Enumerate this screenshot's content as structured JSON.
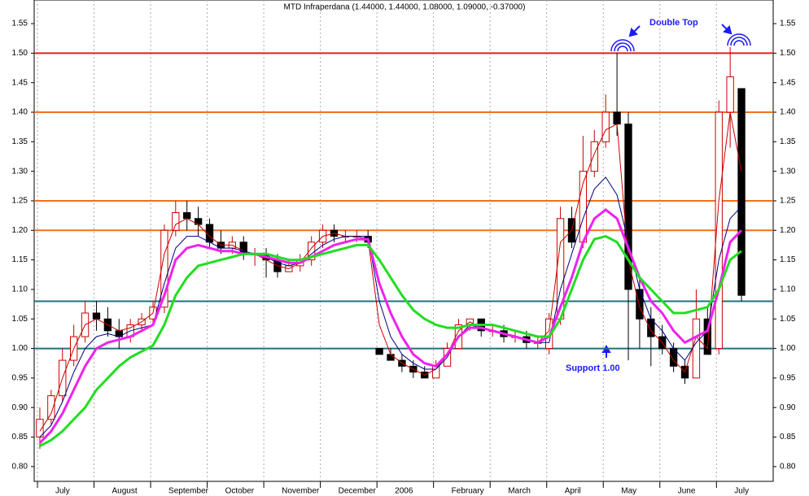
{
  "chart_data": {
    "type": "candlestick",
    "title": "MTD Infraperdana (1.44000, 1.44000, 1.08000, 1.09000, -0.37000)",
    "categories": [
      "July",
      null,
      null,
      null,
      null,
      "August",
      null,
      null,
      null,
      null,
      "September",
      null,
      null,
      null,
      null,
      "October",
      null,
      null,
      null,
      null,
      "November",
      null,
      null,
      null,
      null,
      "December",
      null,
      null,
      null,
      null,
      "2006",
      null,
      null,
      null,
      null,
      "February",
      null,
      null,
      null,
      null,
      "March",
      null,
      null,
      null,
      null,
      "April",
      null,
      null,
      null,
      null,
      "May",
      null,
      null,
      null,
      null,
      "June",
      null,
      null,
      null,
      null,
      "July",
      null,
      null
    ],
    "open": [
      0.85,
      0.88,
      0.92,
      0.98,
      1.02,
      1.06,
      1.05,
      1.03,
      1.02,
      1.04,
      1.05,
      1.07,
      1.2,
      1.23,
      1.22,
      1.21,
      1.18,
      1.17,
      1.18,
      1.16,
      1.16,
      1.15,
      1.13,
      1.14,
      1.15,
      1.18,
      1.2,
      1.19,
      1.19,
      1.19,
      1.0,
      0.99,
      0.98,
      0.97,
      0.96,
      0.95,
      0.97,
      1.0,
      1.04,
      1.05,
      1.03,
      1.03,
      1.02,
      1.02,
      1.01,
      1.0,
      1.05,
      1.22,
      1.18,
      1.3,
      1.35,
      1.4,
      1.38,
      1.1,
      1.05,
      1.02,
      1.0,
      0.97,
      0.95,
      1.05,
      1.0,
      1.4,
      1.44
    ],
    "high": [
      0.9,
      0.93,
      1.0,
      1.04,
      1.08,
      1.08,
      1.07,
      1.05,
      1.05,
      1.06,
      1.08,
      1.21,
      1.25,
      1.25,
      1.24,
      1.22,
      1.2,
      1.19,
      1.19,
      1.17,
      1.17,
      1.16,
      1.15,
      1.16,
      1.19,
      1.21,
      1.21,
      1.2,
      1.2,
      1.2,
      1.0,
      1.0,
      0.99,
      0.98,
      0.97,
      0.98,
      1.01,
      1.05,
      1.05,
      1.05,
      1.04,
      1.04,
      1.03,
      1.03,
      1.02,
      1.06,
      1.24,
      1.24,
      1.36,
      1.37,
      1.43,
      1.5,
      1.4,
      1.12,
      1.07,
      1.04,
      1.01,
      0.98,
      1.1,
      1.07,
      1.42,
      1.51,
      1.44
    ],
    "low": [
      0.83,
      0.87,
      0.91,
      0.97,
      1.01,
      1.03,
      1.02,
      1.0,
      1.01,
      1.03,
      1.04,
      1.06,
      1.19,
      1.2,
      1.19,
      1.17,
      1.16,
      1.16,
      1.15,
      1.14,
      1.12,
      1.12,
      1.13,
      1.13,
      1.14,
      1.17,
      1.18,
      1.18,
      1.18,
      1.17,
      0.99,
      0.98,
      0.96,
      0.95,
      0.95,
      0.95,
      0.97,
      1.0,
      1.03,
      1.02,
      1.02,
      1.01,
      1.01,
      1.0,
      1.0,
      0.99,
      1.04,
      1.17,
      1.17,
      1.29,
      1.34,
      1.36,
      0.98,
      1.0,
      0.97,
      0.99,
      0.96,
      0.94,
      0.95,
      0.99,
      0.99,
      1.34,
      1.08
    ],
    "close": [
      0.88,
      0.92,
      0.98,
      1.02,
      1.06,
      1.05,
      1.03,
      1.02,
      1.04,
      1.05,
      1.07,
      1.2,
      1.23,
      1.22,
      1.21,
      1.18,
      1.17,
      1.18,
      1.16,
      1.16,
      1.15,
      1.13,
      1.14,
      1.15,
      1.18,
      1.2,
      1.19,
      1.19,
      1.19,
      1.18,
      0.99,
      0.98,
      0.97,
      0.96,
      0.95,
      0.97,
      1.0,
      1.04,
      1.05,
      1.03,
      1.03,
      1.02,
      1.02,
      1.01,
      1.01,
      1.05,
      1.22,
      1.18,
      1.3,
      1.35,
      1.4,
      1.38,
      1.1,
      1.05,
      1.02,
      1.0,
      0.97,
      0.95,
      1.05,
      0.99,
      1.4,
      1.46,
      1.09
    ],
    "up_color": "#cc0000",
    "down_color": "#000000",
    "series": [
      {
        "color": "#cc0000",
        "width": 1,
        "values": [
          0.86,
          0.89,
          0.95,
          1.0,
          1.04,
          1.05,
          1.04,
          1.03,
          1.035,
          1.045,
          1.06,
          1.16,
          1.21,
          1.22,
          1.21,
          1.19,
          1.175,
          1.175,
          1.165,
          1.16,
          1.15,
          1.14,
          1.135,
          1.145,
          1.17,
          1.19,
          1.195,
          1.19,
          1.19,
          1.185,
          1.04,
          0.99,
          0.975,
          0.965,
          0.955,
          0.965,
          0.99,
          1.03,
          1.045,
          1.035,
          1.03,
          1.025,
          1.02,
          1.015,
          1.01,
          1.03,
          1.18,
          1.2,
          1.28,
          1.33,
          1.37,
          1.38,
          1.15,
          1.07,
          1.03,
          1.01,
          0.98,
          0.96,
          1.02,
          1.0,
          1.25,
          1.4,
          1.3
        ]
      },
      {
        "color": "#000080",
        "width": 1,
        "values": [
          0.85,
          0.87,
          0.91,
          0.96,
          1.0,
          1.02,
          1.025,
          1.02,
          1.03,
          1.035,
          1.04,
          1.11,
          1.17,
          1.19,
          1.19,
          1.18,
          1.17,
          1.17,
          1.165,
          1.16,
          1.155,
          1.145,
          1.14,
          1.145,
          1.16,
          1.175,
          1.185,
          1.19,
          1.19,
          1.19,
          1.08,
          1.02,
          0.99,
          0.975,
          0.965,
          0.965,
          0.985,
          1.02,
          1.04,
          1.035,
          1.03,
          1.025,
          1.02,
          1.015,
          1.01,
          1.01,
          1.1,
          1.16,
          1.22,
          1.27,
          1.29,
          1.26,
          1.18,
          1.1,
          1.05,
          1.03,
          1.0,
          0.98,
          1.01,
          1.03,
          1.15,
          1.22,
          1.24
        ]
      },
      {
        "color": "#ee22ee",
        "width": 3,
        "values": [
          0.84,
          0.86,
          0.89,
          0.93,
          0.97,
          1.0,
          1.01,
          1.015,
          1.02,
          1.03,
          1.04,
          1.09,
          1.15,
          1.17,
          1.175,
          1.17,
          1.165,
          1.165,
          1.16,
          1.16,
          1.155,
          1.15,
          1.145,
          1.145,
          1.155,
          1.165,
          1.175,
          1.18,
          1.185,
          1.185,
          1.11,
          1.06,
          1.02,
          0.99,
          0.975,
          0.97,
          0.99,
          1.02,
          1.035,
          1.035,
          1.03,
          1.025,
          1.02,
          1.015,
          1.01,
          1.02,
          1.07,
          1.12,
          1.18,
          1.22,
          1.235,
          1.22,
          1.17,
          1.12,
          1.08,
          1.06,
          1.03,
          1.01,
          1.02,
          1.03,
          1.1,
          1.18,
          1.2
        ]
      },
      {
        "color": "#22dd22",
        "width": 3,
        "values": [
          0.835,
          0.845,
          0.86,
          0.88,
          0.9,
          0.93,
          0.95,
          0.97,
          0.985,
          0.995,
          1.005,
          1.04,
          1.09,
          1.12,
          1.14,
          1.145,
          1.15,
          1.155,
          1.16,
          1.16,
          1.16,
          1.155,
          1.15,
          1.15,
          1.155,
          1.16,
          1.165,
          1.17,
          1.175,
          1.175,
          1.15,
          1.12,
          1.09,
          1.065,
          1.05,
          1.04,
          1.035,
          1.035,
          1.04,
          1.04,
          1.04,
          1.035,
          1.03,
          1.025,
          1.02,
          1.02,
          1.05,
          1.1,
          1.15,
          1.185,
          1.19,
          1.18,
          1.15,
          1.12,
          1.1,
          1.08,
          1.06,
          1.06,
          1.065,
          1.07,
          1.1,
          1.15,
          1.165
        ]
      }
    ],
    "levels": [
      {
        "value": 1.5,
        "color": "#e02020"
      },
      {
        "value": 1.4,
        "color": "#f07020"
      },
      {
        "value": 1.25,
        "color": "#f07020"
      },
      {
        "value": 1.2,
        "color": "#f07020"
      },
      {
        "value": 1.08,
        "color": "#207080"
      },
      {
        "value": 1.0,
        "color": "#207080"
      }
    ],
    "ylim": [
      0.775,
      1.59
    ],
    "yticks": [
      {
        "value": 0.8,
        "label": "0.80"
      },
      {
        "value": 0.85,
        "label": "0.85"
      },
      {
        "value": 0.9,
        "label": "0.90"
      },
      {
        "value": 0.95,
        "label": "0.95"
      },
      {
        "value": 1.0,
        "label": "1.00"
      },
      {
        "value": 1.05,
        "label": "1.05"
      },
      {
        "value": 1.1,
        "label": "1.10"
      },
      {
        "value": 1.15,
        "label": "1.15"
      },
      {
        "value": 1.2,
        "label": "1.20"
      },
      {
        "value": 1.25,
        "label": "1.25"
      },
      {
        "value": 1.3,
        "label": "1.30"
      },
      {
        "value": 1.35,
        "label": "1.35"
      },
      {
        "value": 1.4,
        "label": "1.40"
      },
      {
        "value": 1.45,
        "label": "1.45"
      },
      {
        "value": 1.5,
        "label": "1.50"
      },
      {
        "value": 1.55,
        "label": "1.55"
      }
    ],
    "annotations": [
      "Double Top",
      "Support 1.00"
    ]
  }
}
